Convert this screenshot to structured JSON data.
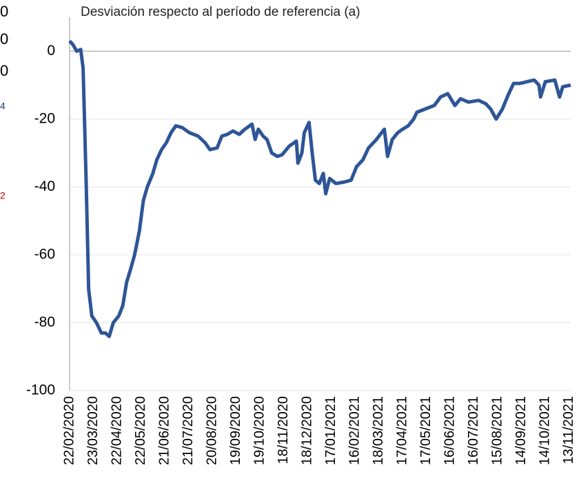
{
  "left_fragments": [
    "0",
    "0",
    "0",
    "4",
    "2"
  ],
  "chart_data": {
    "type": "line",
    "title": "Desviación respecto al período de referencia (a)",
    "x": [
      "22/02/2020",
      "26/02/2020",
      "02/03/2020",
      "07/03/2020",
      "10/03/2020",
      "14/03/2020",
      "17/03/2020",
      "21/03/2020",
      "27/03/2020",
      "02/04/2020",
      "07/04/2020",
      "12/04/2020",
      "17/04/2020",
      "24/04/2020",
      "29/04/2020",
      "04/05/2020",
      "08/05/2020",
      "14/05/2020",
      "20/05/2020",
      "25/05/2020",
      "30/05/2020",
      "06/06/2020",
      "11/06/2020",
      "17/06/2020",
      "23/06/2020",
      "29/06/2020",
      "05/07/2020",
      "13/07/2020",
      "22/07/2020",
      "02/08/2020",
      "11/08/2020",
      "17/08/2020",
      "26/08/2020",
      "01/09/2020",
      "08/09/2020",
      "15/09/2020",
      "23/09/2020",
      "30/09/2020",
      "09/10/2020",
      "13/10/2020",
      "17/10/2020",
      "23/10/2020",
      "28/10/2020",
      "03/11/2020",
      "10/11/2020",
      "16/11/2020",
      "25/11/2020",
      "04/12/2020",
      "06/12/2020",
      "11/12/2020",
      "14/12/2020",
      "20/12/2020",
      "24/12/2020",
      "28/12/2020",
      "02/01/2021",
      "07/01/2021",
      "10/01/2021",
      "15/01/2021",
      "23/01/2021",
      "03/02/2021",
      "11/02/2021",
      "18/02/2021",
      "26/02/2021",
      "05/03/2021",
      "15/03/2021",
      "20/03/2021",
      "25/03/2021",
      "29/03/2021",
      "04/04/2021",
      "11/04/2021",
      "17/04/2021",
      "24/04/2021",
      "01/05/2021",
      "05/05/2021",
      "16/05/2021",
      "27/05/2021",
      "04/06/2021",
      "13/06/2021",
      "22/06/2021",
      "29/06/2021",
      "09/07/2021",
      "22/07/2021",
      "31/07/2021",
      "06/08/2021",
      "13/08/2021",
      "21/08/2021",
      "28/08/2021",
      "04/09/2021",
      "12/09/2021",
      "21/09/2021",
      "30/09/2021",
      "06/10/2021",
      "08/10/2021",
      "14/10/2021",
      "26/10/2021",
      "01/11/2021",
      "05/11/2021",
      "15/11/2021"
    ],
    "series": [
      {
        "color": "#2e5597",
        "values": [
          3,
          2,
          0,
          0.5,
          -5,
          -40,
          -70,
          -78,
          -80,
          -83,
          -83,
          -84,
          -80,
          -78,
          -75,
          -68,
          -65,
          -60,
          -53,
          -44,
          -40,
          -36,
          -32,
          -29,
          -27,
          -24,
          -22,
          -22.5,
          -24,
          -25,
          -27,
          -29,
          -28.5,
          -25,
          -24.5,
          -23.5,
          -24.5,
          -23,
          -21.5,
          -26,
          -23,
          -25,
          -26,
          -30,
          -31,
          -30.5,
          -28,
          -26.5,
          -33,
          -30,
          -24,
          -21,
          -30,
          -38,
          -39,
          -36,
          -42,
          -37.5,
          -39,
          -38.5,
          -38,
          -34,
          -32,
          -28.5,
          -26,
          -24.5,
          -23,
          -31,
          -26,
          -24,
          -23,
          -22,
          -20,
          -18,
          -17,
          -16,
          -13.5,
          -12.5,
          -16,
          -14,
          -15,
          -14.5,
          -15.5,
          -17,
          -20,
          -17,
          -13,
          -9.5,
          -9.5,
          -9,
          -8.5,
          -10,
          -13.5,
          -9,
          -8.5,
          -13.5,
          -10.5,
          -10
        ]
      }
    ],
    "xlim": [
      "22/02/2020",
      "15/11/2021"
    ],
    "xticks": [
      "22/02/2020",
      "23/03/2020",
      "22/04/2020",
      "22/05/2020",
      "21/06/2020",
      "21/07/2020",
      "20/08/2020",
      "19/09/2020",
      "19/10/2020",
      "18/11/2020",
      "18/12/2020",
      "17/01/2021",
      "16/02/2021",
      "18/03/2021",
      "17/04/2021",
      "17/05/2021",
      "16/06/2021",
      "16/07/2021",
      "15/08/2021",
      "14/09/2021",
      "14/10/2021",
      "13/11/2021"
    ],
    "ylim": [
      -100,
      10
    ],
    "yticks": [
      0,
      -20,
      -40,
      -60,
      -80,
      -100
    ],
    "grid": true
  }
}
